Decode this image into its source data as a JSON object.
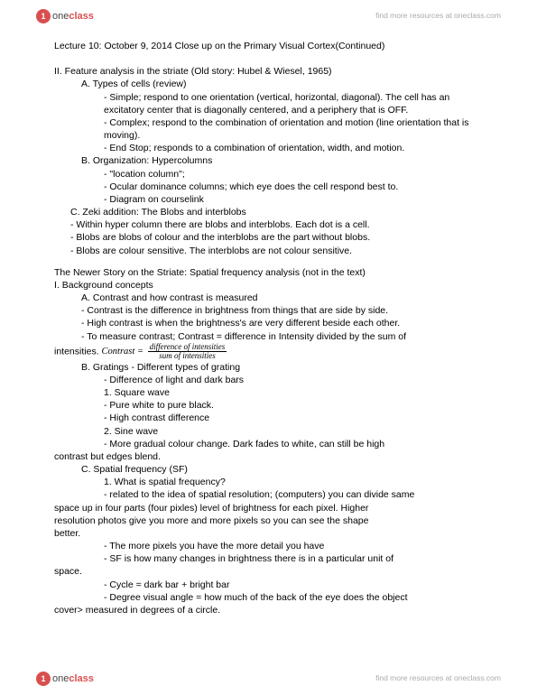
{
  "branding": {
    "logo_glyph": "➀",
    "logo_html_prefix": "one",
    "logo_html_suffix": "class",
    "tagline": "find more resources at oneclass.com"
  },
  "doc": {
    "title": "Lecture 10: October 9, 2014 Close up on the Primary Visual Cortex(Continued)",
    "sec2_head": "II. Feature analysis in the striate (Old story: Hubel & Wiesel, 1965)",
    "A_head": "A. Types of cells (review)",
    "A1": "- Simple; respond to one orientation (vertical, horizontal, diagonal). The cell has an excitatory center that is diagonally centered, and a periphery that is OFF.",
    "A2": "- Complex; respond to the combination of orientation and motion (line orientation that is moving).",
    "A3": "- End Stop; responds to a combination of orientation, width, and motion.",
    "B_head": "B. Organization: Hypercolumns",
    "B1": "- \"location column\";",
    "B2": "- Ocular dominance columns; which eye does the cell respond best to.",
    "B3": "- Diagram on courselink",
    "C_head": "C. Zeki addition: The Blobs and interblobs",
    "C1": "- Within hyper column there are blobs and interblobs. Each dot is a cell.",
    "C2": "- Blobs are blobs of colour and the interblobs are the part without blobs.",
    "C3": "- Blobs are colour sensitive. The interblobs are not colour sensitive.",
    "newer_head": "The Newer Story on the Striate: Spatial frequency analysis (not in the text)",
    "I_head": "I. Background concepts",
    "IA_head": "A. Contrast and how contrast is measured",
    "IA1": "- Contrast is the difference in brightness from things that are side by side.",
    "IA2": "- High contrast is when the brightness's are very different beside each other.",
    "IA3_pre": "- To measure contrast; Contrast = difference in Intensity divided by the sum of",
    "IA3_line2_label": "intensities. ",
    "IA3_formula_lhs": "Contrast = ",
    "IA3_num": "difference of intensities",
    "IA3_den": "sum of intensities",
    "IB_head": "B. Gratings - Different types of grating",
    "IB0": "- Difference of light and dark bars",
    "IB1_head": "1. Square wave",
    "IB1a": "- Pure white to pure black.",
    "IB1b": "- High contrast difference",
    "IB2_head": "2. Sine wave",
    "IB2a_l1": "- More gradual colour change. Dark fades to white, can still be high",
    "IB2a_l2": "contrast but edges blend.",
    "IC_head": "C. Spatial frequency (SF)",
    "IC1_head": "1. What is spatial frequency?",
    "IC1a_l1": "- related to the idea of spatial resolution; (computers) you can divide same",
    "IC1a_l2": "space up in four parts (four pixles) level of brightness for each pixel. Higher",
    "IC1a_l3": "resolution photos give you more and more pixels so you can see the shape",
    "IC1a_l4": "better.",
    "IC1b": "- The more pixels you have the more detail you have",
    "IC1c_l1": "- SF is how many changes in brightness there is in a particular unit of",
    "IC1c_l2": "space.",
    "IC1d": "- Cycle =  dark bar + bright bar",
    "IC1e_l1": "- Degree visual angle = how much of the back of the eye does the object",
    "IC1e_l2": "cover> measured in degrees of a circle."
  }
}
